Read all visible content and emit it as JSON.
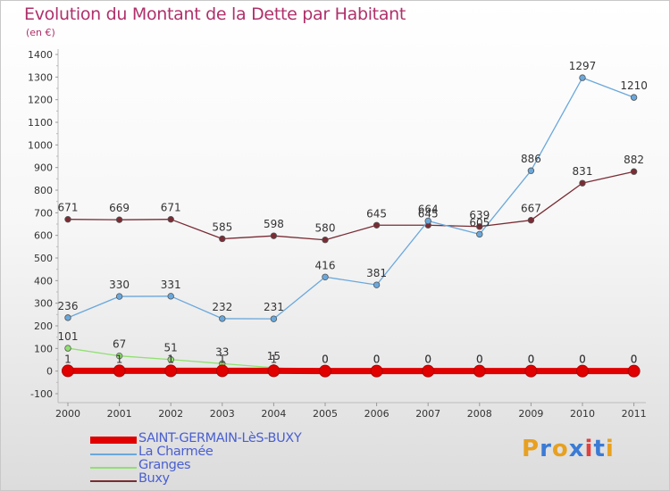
{
  "header": {
    "title": "Evolution du Montant de la Dette par Habitant",
    "subtitle": "(en €)"
  },
  "logo": {
    "text": "Proxiti",
    "letter_colors": [
      "#e8a020",
      "#3a7bd5",
      "#e8a020",
      "#3a7bd5",
      "#e04040",
      "#3a7bd5",
      "#e8a020"
    ]
  },
  "chart_data": {
    "type": "line",
    "x": [
      "2000",
      "2001",
      "2002",
      "2003",
      "2004",
      "2005",
      "2006",
      "2007",
      "2008",
      "2009",
      "2010",
      "2011"
    ],
    "ylim": [
      -100,
      1400
    ],
    "yticks": [
      "-100",
      "0",
      "100",
      "200",
      "300",
      "400",
      "500",
      "600",
      "700",
      "800",
      "900",
      "1000",
      "1100",
      "1200",
      "1300",
      "1400"
    ],
    "grid": false,
    "legend_position": "bottom-left",
    "series": [
      {
        "name": "SAINT-GERMAIN-LèS-BUXY",
        "color": "#e00000",
        "values": [
          1,
          1,
          1,
          1,
          1,
          0,
          0,
          0,
          0,
          0,
          0,
          0
        ],
        "labels": [
          "1",
          "1",
          "1",
          "1",
          "1",
          "0",
          "0",
          "0",
          "0",
          "0",
          "0",
          "0"
        ]
      },
      {
        "name": "La Charmée",
        "color": "#6aa8dc",
        "values": [
          236,
          330,
          331,
          232,
          231,
          416,
          381,
          664,
          605,
          886,
          1297,
          1210
        ],
        "labels": [
          "236",
          "330",
          "331",
          "232",
          "231",
          "416",
          "381",
          "664",
          "605",
          "886",
          "1297",
          "1210"
        ]
      },
      {
        "name": "Granges",
        "color": "#90e070",
        "values": [
          101,
          67,
          51,
          33,
          15,
          0,
          0,
          0,
          0,
          0,
          0,
          0
        ],
        "labels": [
          "101",
          "67",
          "51",
          "33",
          "15",
          "0",
          "0",
          "0",
          "0",
          "0",
          "0",
          "0"
        ]
      },
      {
        "name": "Buxy",
        "color": "#7a2c34",
        "values": [
          671,
          669,
          671,
          585,
          598,
          580,
          645,
          645,
          639,
          667,
          831,
          882
        ],
        "labels": [
          "671",
          "669",
          "671",
          "585",
          "598",
          "580",
          "645",
          "645",
          "639",
          "667",
          "831",
          "882"
        ]
      }
    ]
  }
}
